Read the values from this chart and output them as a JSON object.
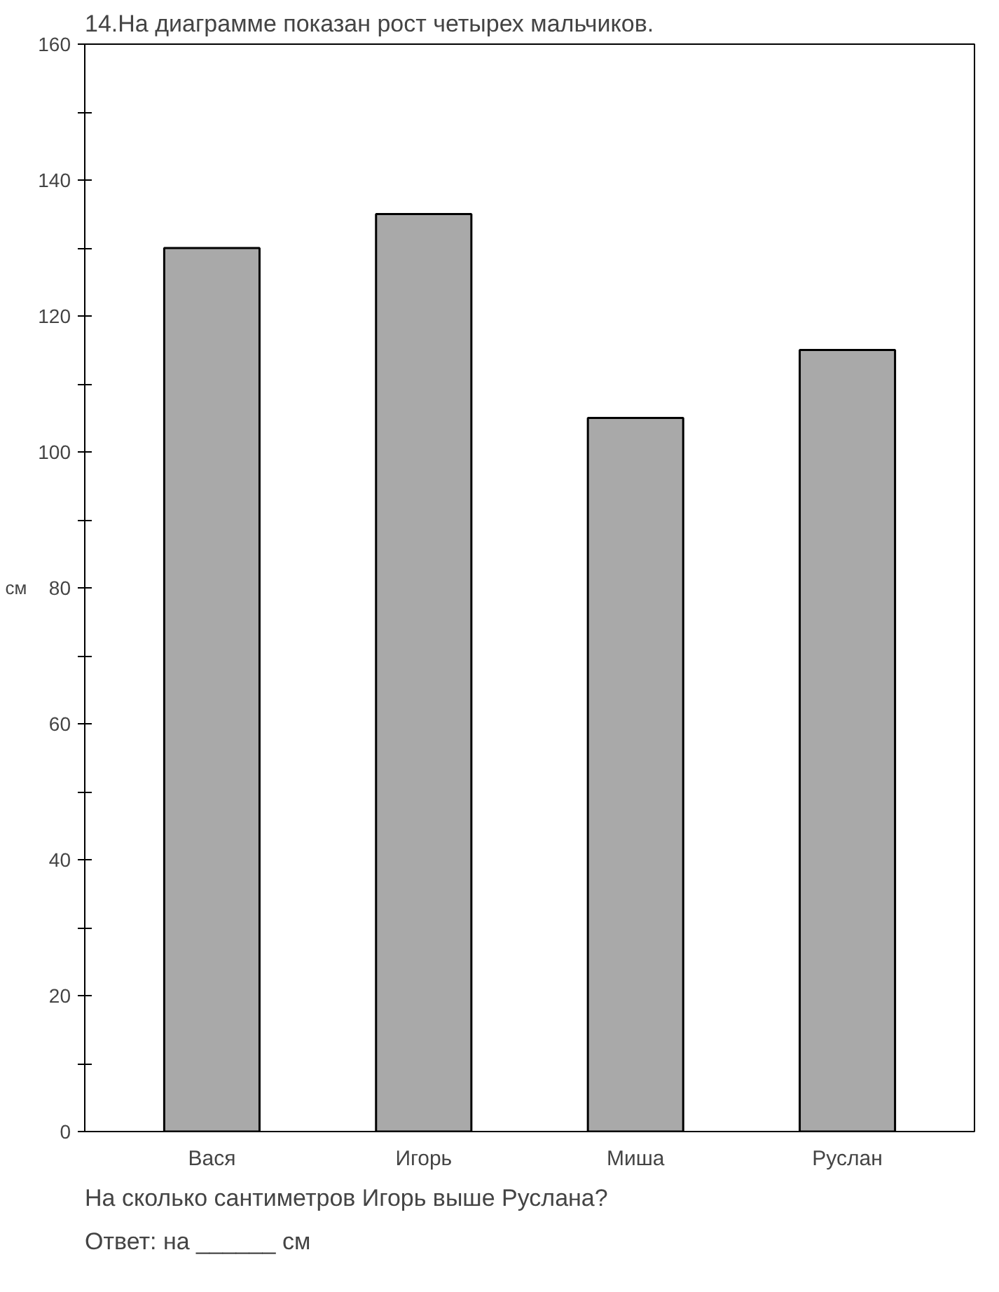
{
  "chart_data": {
    "type": "bar",
    "title": "14.На диаграмме показан рост четырех мальчиков.",
    "ylabel": "см",
    "categories": [
      "Вася",
      "Игорь",
      "Миша",
      "Руслан"
    ],
    "values": [
      130,
      135,
      105,
      115
    ],
    "color": "#a9a9a9",
    "ylim": [
      0,
      160
    ],
    "yticks": [
      0,
      {
        "value": 10,
        "label": null
      },
      20,
      {
        "value": 30,
        "label": null
      },
      40,
      {
        "value": 50,
        "label": null
      },
      60,
      {
        "value": 70,
        "label": null
      },
      80,
      {
        "value": 90,
        "label": null
      },
      100,
      {
        "value": 110,
        "label": null
      },
      120,
      {
        "value": 130,
        "label": null
      },
      140,
      {
        "value": 150,
        "label": null
      },
      160
    ],
    "grid": false,
    "annotations": [
      "На сколько сантиметров Игорь выше Руслана?",
      "Ответ: на ______ см"
    ]
  }
}
